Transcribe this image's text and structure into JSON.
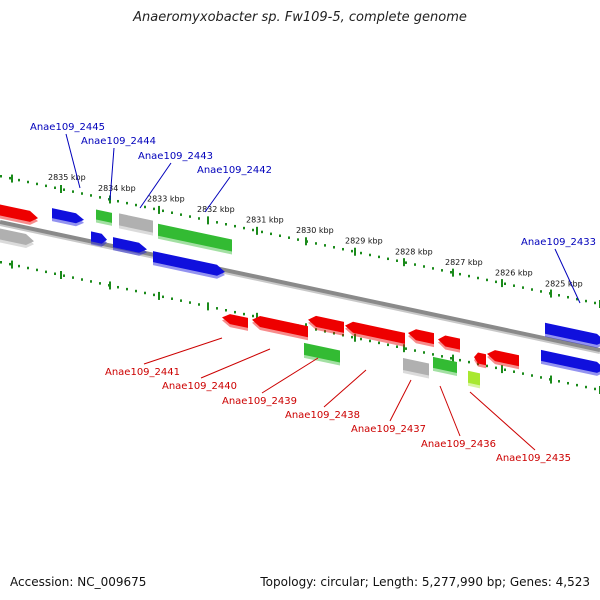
{
  "title": "Anaeromyxobacter sp. Fw109-5, complete genome",
  "footer": {
    "accession": "Accession: NC_009675",
    "summary": "Topology: circular; Length: 5,277,990 bp; Genes: 4,523"
  },
  "colors": {
    "backbone": "#8a8a8a",
    "scale_dots": "#1a8a1a",
    "forward_label": "#0000bb",
    "reverse_label": "#cc0000",
    "gene_blue": "#1010dd",
    "gene_red": "#ee0000",
    "gene_green": "#33bb33",
    "gene_gray": "#b0b0b0",
    "gene_lime": "#a8e830"
  },
  "scale": {
    "unit": "kbp",
    "ticks": [
      "2835 kbp",
      "2834 kbp",
      "2833 kbp",
      "2832 kbp",
      "2831 kbp",
      "2830 kbp",
      "2829 kbp",
      "2828 kbp",
      "2827 kbp",
      "2826 kbp",
      "2825 kbp"
    ]
  },
  "gene_labels": {
    "forward": [
      "Anae109_2445",
      "Anae109_2444",
      "Anae109_2443",
      "Anae109_2442",
      "Anae109_2433"
    ],
    "reverse": [
      "Anae109_2441",
      "Anae109_2440",
      "Anae109_2439",
      "Anae109_2438",
      "Anae109_2437",
      "Anae109_2436",
      "Anae109_2435"
    ]
  }
}
